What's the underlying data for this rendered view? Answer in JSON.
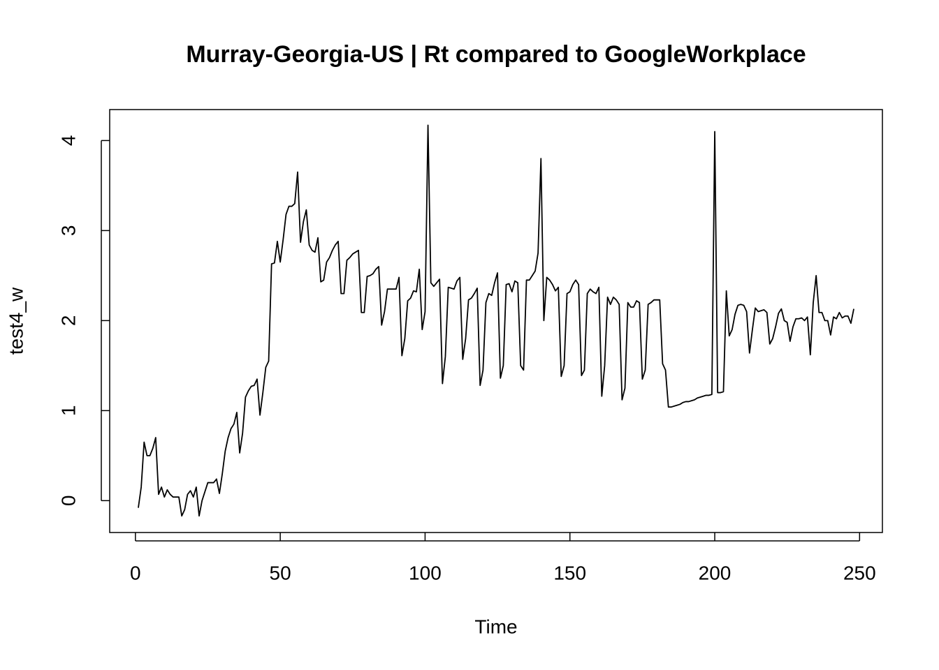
{
  "chart_data": {
    "type": "line",
    "title": "Murray-Georgia-US | Rt compared to GoogleWorkplace",
    "x_label": "Time",
    "y_label": "test4_w",
    "xlim": [
      -8.88,
      257.88
    ],
    "ylim": [
      -0.354,
      4.344
    ],
    "xticks": [
      0,
      50,
      100,
      150,
      200,
      250
    ],
    "yticks": [
      0,
      1,
      2,
      3,
      4
    ],
    "series": [
      {
        "color": "#000000",
        "x": [
          1,
          2,
          3,
          4,
          5,
          6,
          7,
          8,
          9,
          10,
          11,
          12,
          13,
          14,
          15,
          16,
          17,
          18,
          19,
          20,
          21,
          22,
          23,
          24,
          25,
          26,
          27,
          28,
          29,
          30,
          31,
          32,
          33,
          34,
          35,
          36,
          37,
          38,
          39,
          40,
          41,
          42,
          43,
          44,
          45,
          46,
          47,
          48,
          49,
          50,
          51,
          52,
          53,
          54,
          55,
          56,
          57,
          58,
          59,
          60,
          61,
          62,
          63,
          64,
          65,
          66,
          67,
          68,
          69,
          70,
          71,
          72,
          73,
          74,
          75,
          76,
          77,
          78,
          79,
          80,
          81,
          82,
          83,
          84,
          85,
          86,
          87,
          88,
          89,
          90,
          91,
          92,
          93,
          94,
          95,
          96,
          97,
          98,
          99,
          100,
          101,
          102,
          103,
          104,
          105,
          106,
          107,
          108,
          109,
          110,
          111,
          112,
          113,
          114,
          115,
          116,
          117,
          118,
          119,
          120,
          121,
          122,
          123,
          124,
          125,
          126,
          127,
          128,
          129,
          130,
          131,
          132,
          133,
          134,
          135,
          136,
          137,
          138,
          139,
          140,
          141,
          142,
          143,
          144,
          145,
          146,
          147,
          148,
          149,
          150,
          151,
          152,
          153,
          154,
          155,
          156,
          157,
          158,
          159,
          160,
          161,
          162,
          163,
          164,
          165,
          166,
          167,
          168,
          169,
          170,
          171,
          172,
          173,
          174,
          175,
          176,
          177,
          178,
          179,
          180,
          181,
          182,
          183,
          184,
          185,
          186,
          187,
          188,
          189,
          190,
          191,
          192,
          193,
          194,
          195,
          196,
          197,
          198,
          199,
          200,
          201,
          202,
          203,
          204,
          205,
          206,
          207,
          208,
          209,
          210,
          211,
          212,
          213,
          214,
          215,
          216,
          217,
          218,
          219,
          220,
          221,
          222,
          223,
          224,
          225,
          226,
          227,
          228,
          229,
          230,
          231,
          232,
          233,
          234,
          235,
          236,
          237,
          238,
          239,
          240,
          241,
          242,
          243,
          244,
          245,
          246,
          247,
          248
        ],
        "values": [
          -0.08,
          0.15,
          0.65,
          0.5,
          0.5,
          0.58,
          0.7,
          0.07,
          0.15,
          0.04,
          0.12,
          0.07,
          0.04,
          0.04,
          0.04,
          -0.17,
          -0.1,
          0.07,
          0.11,
          0.04,
          0.15,
          -0.17,
          0.0,
          0.1,
          0.2,
          0.2,
          0.2,
          0.24,
          0.08,
          0.3,
          0.55,
          0.7,
          0.8,
          0.85,
          0.98,
          0.53,
          0.75,
          1.15,
          1.22,
          1.27,
          1.28,
          1.35,
          0.95,
          1.2,
          1.48,
          1.55,
          2.63,
          2.64,
          2.88,
          2.65,
          2.9,
          3.18,
          3.27,
          3.27,
          3.3,
          3.65,
          2.87,
          3.1,
          3.23,
          2.84,
          2.78,
          2.76,
          2.92,
          2.43,
          2.45,
          2.65,
          2.7,
          2.78,
          2.84,
          2.88,
          2.3,
          2.3,
          2.67,
          2.7,
          2.74,
          2.76,
          2.78,
          2.09,
          2.09,
          2.49,
          2.5,
          2.52,
          2.57,
          2.6,
          1.95,
          2.1,
          2.35,
          2.35,
          2.35,
          2.35,
          2.48,
          1.61,
          1.8,
          2.22,
          2.25,
          2.33,
          2.32,
          2.57,
          1.9,
          2.1,
          4.17,
          2.42,
          2.38,
          2.42,
          2.46,
          1.3,
          1.6,
          2.37,
          2.36,
          2.35,
          2.44,
          2.48,
          1.57,
          1.8,
          2.23,
          2.25,
          2.3,
          2.36,
          1.28,
          1.45,
          2.2,
          2.3,
          2.28,
          2.42,
          2.53,
          1.36,
          1.5,
          2.4,
          2.41,
          2.32,
          2.44,
          2.42,
          1.5,
          1.45,
          2.45,
          2.45,
          2.5,
          2.55,
          2.75,
          3.8,
          2.0,
          2.48,
          2.45,
          2.4,
          2.33,
          2.37,
          1.38,
          1.5,
          2.3,
          2.32,
          2.4,
          2.45,
          2.4,
          1.39,
          1.45,
          2.3,
          2.35,
          2.32,
          2.3,
          2.37,
          1.16,
          1.5,
          2.26,
          2.18,
          2.26,
          2.23,
          2.18,
          1.12,
          1.25,
          2.2,
          2.15,
          2.15,
          2.22,
          2.2,
          1.35,
          1.45,
          2.18,
          2.2,
          2.23,
          2.23,
          2.23,
          1.52,
          1.45,
          1.04,
          1.04,
          1.05,
          1.06,
          1.07,
          1.09,
          1.1,
          1.1,
          1.11,
          1.12,
          1.14,
          1.15,
          1.16,
          1.17,
          1.17,
          1.18,
          4.1,
          1.2,
          1.2,
          1.21,
          2.33,
          1.83,
          1.9,
          2.07,
          2.17,
          2.18,
          2.17,
          2.1,
          1.64,
          1.9,
          2.14,
          2.1,
          2.11,
          2.12,
          2.09,
          1.74,
          1.8,
          1.93,
          2.08,
          2.13,
          2.0,
          1.98,
          1.77,
          1.93,
          2.02,
          2.02,
          2.03,
          2.0,
          2.04,
          1.62,
          2.2,
          2.5,
          2.09,
          2.09,
          2.0,
          2.0,
          1.84,
          2.04,
          2.02,
          2.09,
          2.03,
          2.05,
          2.05,
          1.97,
          2.13
        ]
      }
    ]
  }
}
